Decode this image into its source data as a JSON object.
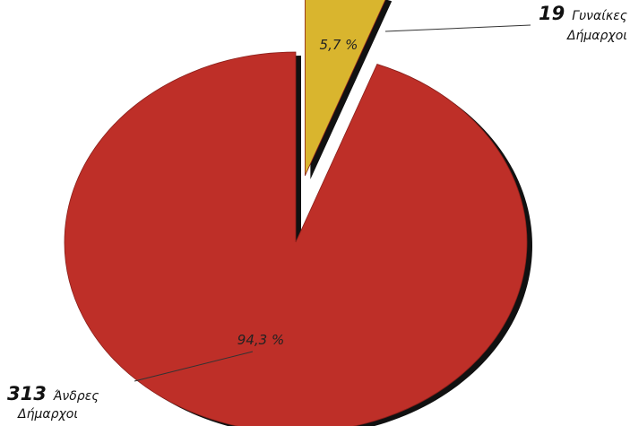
{
  "chart_data": {
    "type": "pie",
    "categories": [
      "Γυναίκες Δήμαρχοι",
      "Άνδρες Δήμαρχοι"
    ],
    "values": [
      19,
      313
    ],
    "percent_labels": [
      "5,7 %",
      "94,3 %"
    ],
    "slices": [
      {
        "count": "19",
        "label_line1": "Γυναίκες",
        "label_line2": "Δήμαρχοι",
        "value": 19,
        "percent": "5,7 %",
        "color": "#d9b52e",
        "exploded": true
      },
      {
        "count": "313",
        "label_line1": "Άνδρες",
        "label_line2": "Δήμαρχοι",
        "value": 313,
        "percent": "94,3 %",
        "color": "#be2f28",
        "exploded": false
      }
    ],
    "title": "",
    "legend": "none"
  }
}
